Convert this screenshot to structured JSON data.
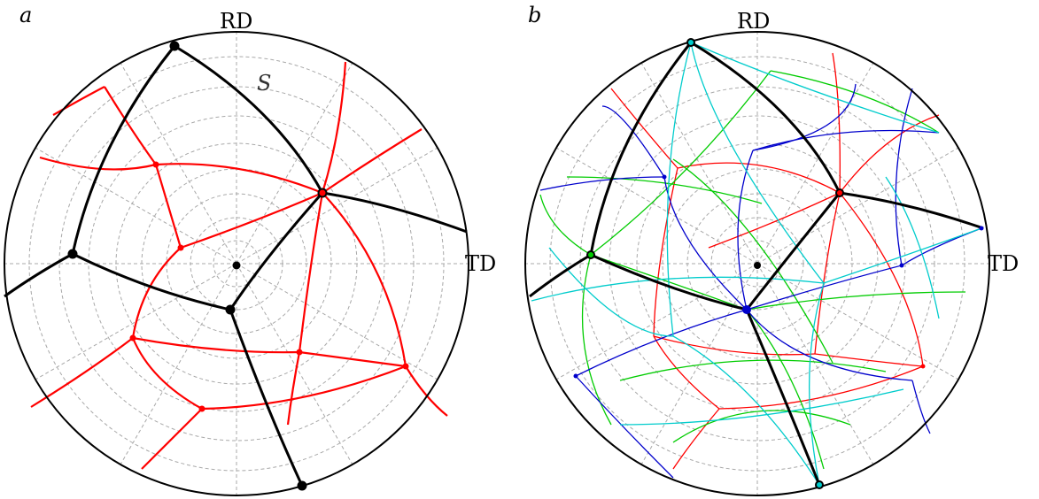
{
  "panels": [
    {
      "letter": "a",
      "rd_label": "RD",
      "td_label": "TD",
      "s_label": "S"
    },
    {
      "letter": "b",
      "rd_label": "RD",
      "td_label": "TD"
    }
  ],
  "colors": {
    "circle": "#000000",
    "grid": "#a8a8a8",
    "black_arcs": "#000000",
    "set_red": "#ff0000",
    "set_green": "#00cc00",
    "set_blue": "#0000cc",
    "set_cyan": "#00cccc"
  }
}
